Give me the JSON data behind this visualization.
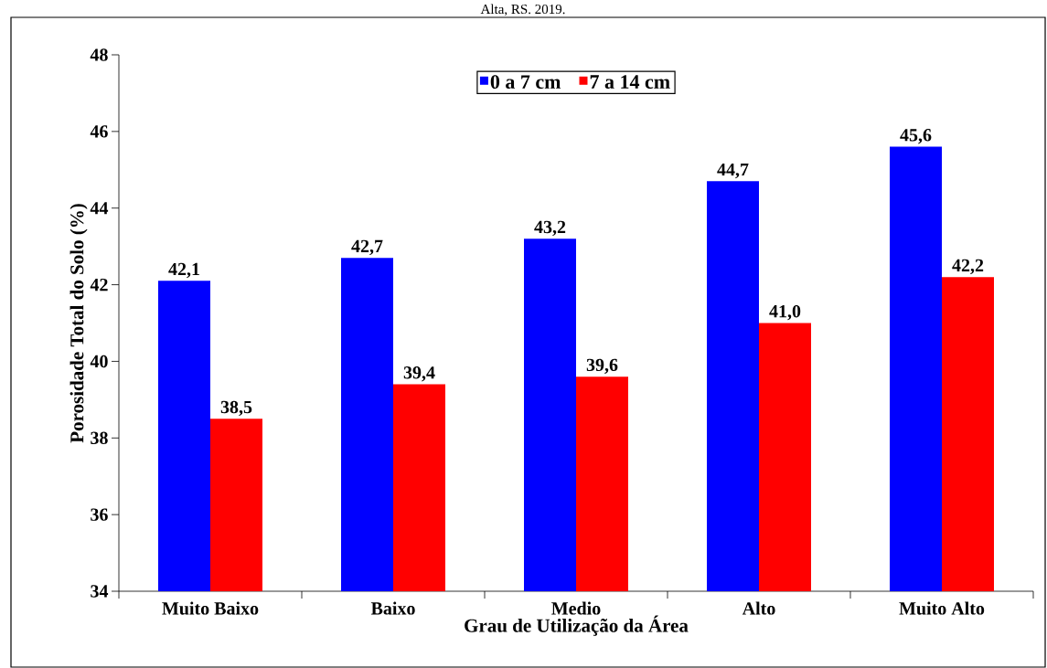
{
  "chart_data": {
    "type": "bar",
    "annotations": [
      "Alta, RS. 2019."
    ],
    "xlabel": "Grau de Utilização da Área",
    "ylabel": "Porosidade Total do Solo (%)",
    "categories": [
      "Muito Baixo",
      "Baixo",
      "Medio",
      "Alto",
      "Muito Alto"
    ],
    "series": [
      {
        "name": "0 a 7 cm",
        "color": "#0000ff",
        "values": [
          42.1,
          42.7,
          43.2,
          44.7,
          45.6
        ],
        "value_labels": [
          "42,1",
          "42,7",
          "43,2",
          "44,7",
          "45,6"
        ]
      },
      {
        "name": "7 a 14 cm",
        "color": "#ff0000",
        "values": [
          38.5,
          39.4,
          39.6,
          41.0,
          42.2
        ],
        "value_labels": [
          "38,5",
          "39,4",
          "39,6",
          "41,0",
          "42,2"
        ]
      }
    ],
    "ylim": [
      34,
      48
    ],
    "yticks": [
      34,
      36,
      38,
      40,
      42,
      44,
      46,
      48
    ],
    "legend": "top",
    "grid": false
  }
}
